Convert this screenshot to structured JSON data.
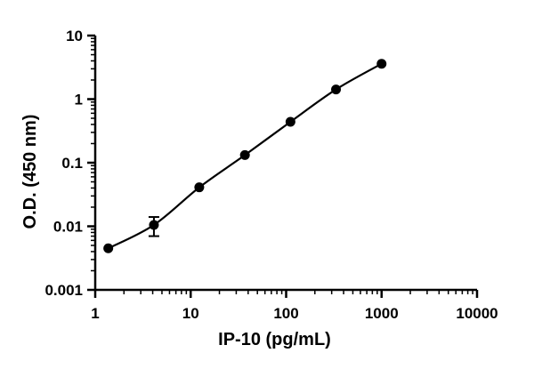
{
  "chart_data": {
    "type": "scatter",
    "title": "",
    "xlabel": "IP-10 (pg/mL)",
    "ylabel": "O.D. (450 nm)",
    "x_scale": "log",
    "y_scale": "log",
    "xlim": [
      1,
      10000
    ],
    "ylim": [
      0.001,
      10
    ],
    "x_ticks": [
      1,
      10,
      100,
      1000,
      10000
    ],
    "x_tick_labels": [
      "1",
      "10",
      "100",
      "1000",
      "10000"
    ],
    "y_ticks": [
      0.001,
      0.01,
      0.1,
      1,
      10
    ],
    "y_tick_labels": [
      "0.001",
      "0.01",
      "0.1",
      "1",
      "10"
    ],
    "grid": false,
    "legend": "none",
    "series": [
      {
        "x": [
          1.37,
          4.12,
          12.3,
          37.0,
          111,
          333,
          1000
        ],
        "y": [
          0.0045,
          0.0105,
          0.041,
          0.132,
          0.44,
          1.42,
          3.6
        ],
        "y_error": [
          0.0002,
          0.0035,
          0.002,
          0.004,
          0.01,
          0.03,
          0.08
        ],
        "fit_curve": true,
        "color": "#000000"
      }
    ]
  }
}
